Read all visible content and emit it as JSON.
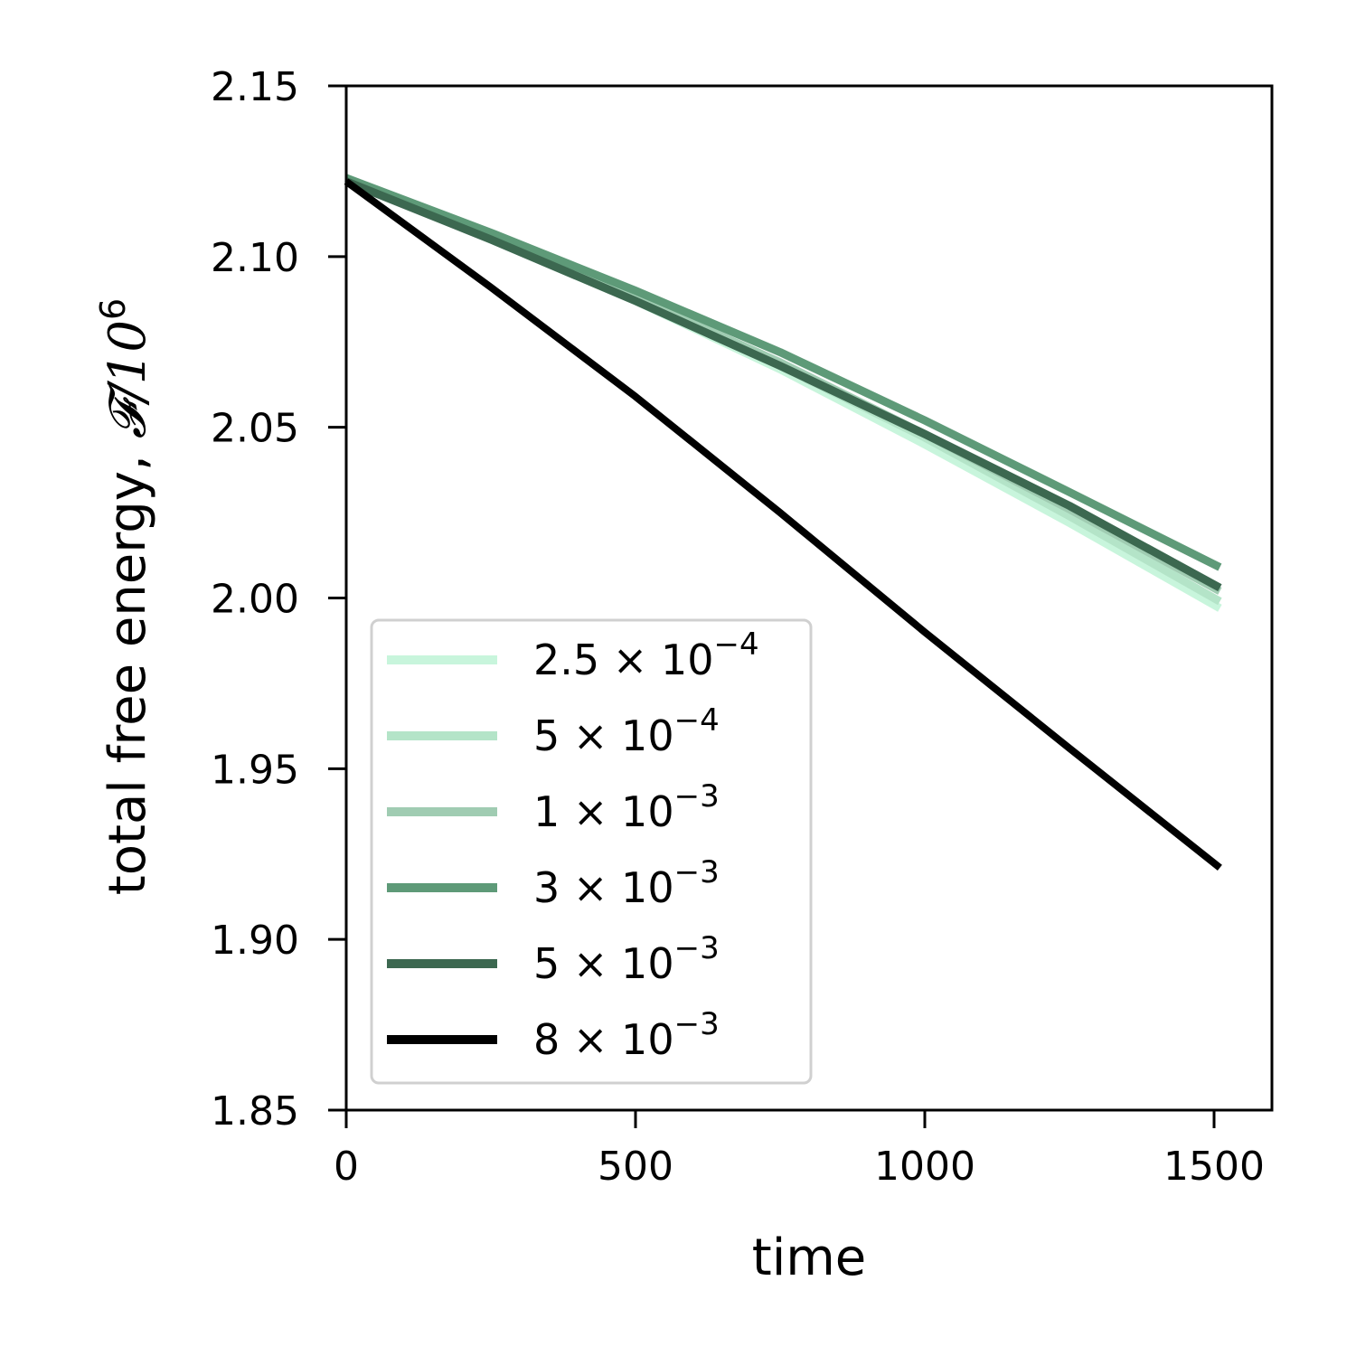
{
  "chart_data": {
    "type": "line",
    "xlabel": "time",
    "ylabel_text": "total free energy, ",
    "ylabel_math": "𝓕/10",
    "ylabel_exp": "6",
    "xlim": [
      0,
      1600
    ],
    "ylim": [
      1.85,
      2.15
    ],
    "xticks": [
      0,
      500,
      1000,
      1500
    ],
    "xtick_labels": [
      "0",
      "500",
      "1000",
      "1500"
    ],
    "yticks": [
      1.85,
      1.9,
      1.95,
      2.0,
      2.05,
      2.1,
      2.15
    ],
    "ytick_labels": [
      "1.85",
      "1.90",
      "1.95",
      "2.00",
      "2.05",
      "2.10",
      "2.15"
    ],
    "grid": false,
    "legend_position": "lower-left",
    "series": [
      {
        "name": "2.5 × 10−4",
        "mantissa": "2.5",
        "exponent": "−4",
        "color": "#c8f5dc",
        "x": [
          0,
          250,
          500,
          750,
          1000,
          1250,
          1510
        ],
        "y": [
          2.123,
          2.105,
          2.087,
          2.067,
          2.045,
          2.022,
          1.997
        ]
      },
      {
        "name": "5 × 10−4",
        "mantissa": "5",
        "exponent": "−4",
        "color": "#b4e4c8",
        "x": [
          0,
          250,
          500,
          750,
          1000,
          1250,
          1510
        ],
        "y": [
          2.123,
          2.106,
          2.088,
          2.068,
          2.047,
          2.024,
          1.999
        ]
      },
      {
        "name": "1 × 10−3",
        "mantissa": "1",
        "exponent": "−3",
        "color": "#a0ccb2",
        "x": [
          0,
          250,
          500,
          750,
          1000,
          1250,
          1510
        ],
        "y": [
          2.123,
          2.106,
          2.088,
          2.069,
          2.048,
          2.026,
          2.002
        ]
      },
      {
        "name": "3 × 10−3",
        "mantissa": "3",
        "exponent": "−3",
        "color": "#5e9a78",
        "x": [
          0,
          250,
          500,
          750,
          1000,
          1250,
          1510
        ],
        "y": [
          2.123,
          2.107,
          2.09,
          2.072,
          2.052,
          2.031,
          2.009
        ]
      },
      {
        "name": "5 × 10−3",
        "mantissa": "5",
        "exponent": "−3",
        "color": "#3c6850",
        "x": [
          0,
          250,
          500,
          750,
          1000,
          1250,
          1510
        ],
        "y": [
          2.122,
          2.105,
          2.087,
          2.068,
          2.048,
          2.027,
          2.003
        ]
      },
      {
        "name": "8 × 10−3",
        "mantissa": "8",
        "exponent": "−3",
        "color": "#000000",
        "x": [
          0,
          250,
          500,
          750,
          1000,
          1250,
          1510
        ],
        "y": [
          2.122,
          2.091,
          2.059,
          2.025,
          1.99,
          1.956,
          1.921
        ]
      }
    ]
  }
}
